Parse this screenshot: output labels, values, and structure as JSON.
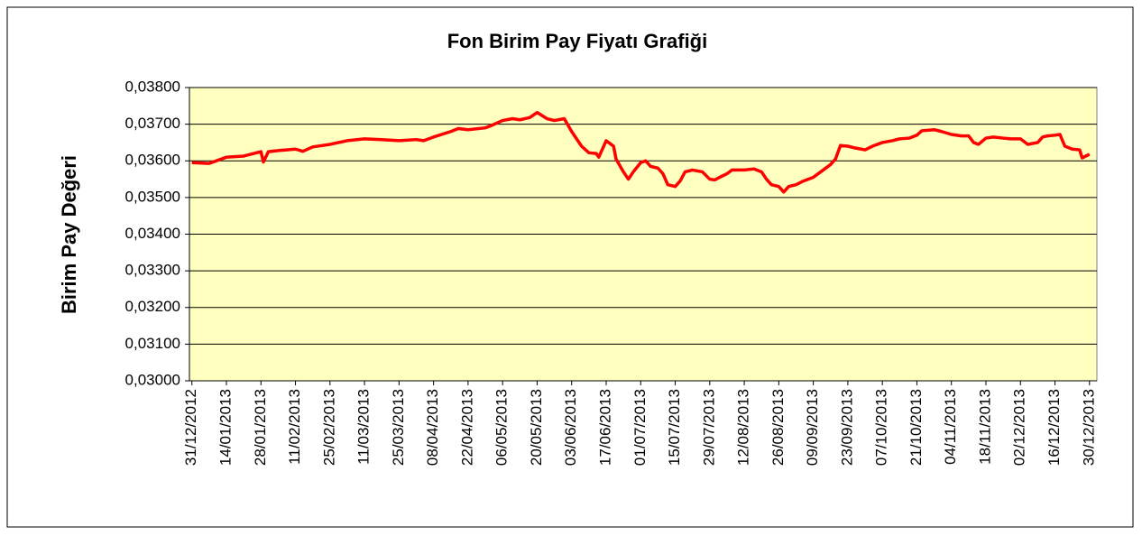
{
  "chart_data": {
    "type": "line",
    "title": "Fon Birim Pay Fiyatı Grafiği",
    "y_label": "Birim Pay Değeri",
    "x": [
      "31/12/2012",
      "07/01/2013",
      "14/01/2013",
      "21/01/2013",
      "28/01/2013",
      "29/01/2013",
      "31/01/2013",
      "04/02/2013",
      "11/02/2013",
      "14/02/2013",
      "18/02/2013",
      "25/02/2013",
      "04/03/2013",
      "11/03/2013",
      "18/03/2013",
      "25/03/2013",
      "01/04/2013",
      "04/04/2013",
      "08/04/2013",
      "15/04/2013",
      "18/04/2013",
      "22/04/2013",
      "29/04/2013",
      "01/05/2013",
      "06/05/2013",
      "10/05/2013",
      "13/05/2013",
      "17/05/2013",
      "20/05/2013",
      "24/05/2013",
      "27/05/2013",
      "31/05/2013",
      "03/06/2013",
      "05/06/2013",
      "07/06/2013",
      "10/06/2013",
      "13/06/2013",
      "14/06/2013",
      "17/06/2013",
      "20/06/2013",
      "21/06/2013",
      "24/06/2013",
      "26/06/2013",
      "28/06/2013",
      "01/07/2013",
      "03/07/2013",
      "05/07/2013",
      "08/07/2013",
      "10/07/2013",
      "12/07/2013",
      "15/07/2013",
      "17/07/2013",
      "19/07/2013",
      "22/07/2013",
      "26/07/2013",
      "29/07/2013",
      "31/07/2013",
      "02/08/2013",
      "05/08/2013",
      "07/08/2013",
      "12/08/2013",
      "16/08/2013",
      "19/08/2013",
      "21/08/2013",
      "23/08/2013",
      "26/08/2013",
      "28/08/2013",
      "30/08/2013",
      "02/09/2013",
      "05/09/2013",
      "09/09/2013",
      "12/09/2013",
      "16/09/2013",
      "18/09/2013",
      "20/09/2013",
      "23/09/2013",
      "26/09/2013",
      "30/09/2013",
      "03/10/2013",
      "07/10/2013",
      "11/10/2013",
      "14/10/2013",
      "18/10/2013",
      "21/10/2013",
      "23/10/2013",
      "28/10/2013",
      "31/10/2013",
      "04/11/2013",
      "08/11/2013",
      "11/11/2013",
      "13/11/2013",
      "15/11/2013",
      "18/11/2013",
      "21/11/2013",
      "25/11/2013",
      "28/11/2013",
      "02/12/2013",
      "05/12/2013",
      "09/12/2013",
      "11/12/2013",
      "13/12/2013",
      "16/12/2013",
      "18/12/2013",
      "20/12/2013",
      "23/12/2013",
      "26/12/2013",
      "27/12/2013",
      "30/12/2013"
    ],
    "values": [
      0.03595,
      0.03593,
      0.0361,
      0.03613,
      0.03625,
      0.03597,
      0.03625,
      0.03628,
      0.03632,
      0.03626,
      0.03638,
      0.03645,
      0.03655,
      0.0366,
      0.03658,
      0.03655,
      0.03658,
      0.03655,
      0.03665,
      0.0368,
      0.03688,
      0.03685,
      0.0369,
      0.03695,
      0.0371,
      0.03715,
      0.03712,
      0.03718,
      0.03732,
      0.03715,
      0.0371,
      0.03715,
      0.0368,
      0.0366,
      0.0364,
      0.03622,
      0.0362,
      0.0361,
      0.03655,
      0.0364,
      0.03605,
      0.0357,
      0.0355,
      0.0357,
      0.03595,
      0.036,
      0.03585,
      0.0358,
      0.03565,
      0.03535,
      0.0353,
      0.03545,
      0.0357,
      0.03575,
      0.0357,
      0.0355,
      0.03548,
      0.03555,
      0.03565,
      0.03575,
      0.03575,
      0.03578,
      0.0357,
      0.0355,
      0.03535,
      0.0353,
      0.03515,
      0.0353,
      0.03535,
      0.03545,
      0.03555,
      0.0357,
      0.0359,
      0.03605,
      0.03642,
      0.0364,
      0.03635,
      0.0363,
      0.0364,
      0.0365,
      0.03655,
      0.0366,
      0.03662,
      0.0367,
      0.03682,
      0.03685,
      0.0368,
      0.03672,
      0.03668,
      0.03668,
      0.0365,
      0.03645,
      0.03662,
      0.03665,
      0.03662,
      0.0366,
      0.0366,
      0.03645,
      0.0365,
      0.03665,
      0.03668,
      0.0367,
      0.03672,
      0.0364,
      0.03632,
      0.0363,
      0.03608,
      0.03618
    ],
    "color": "#ff0000",
    "xlim": [
      "30/12/2012",
      "02/01/2014"
    ],
    "xticks": [
      "31/12/2012",
      "14/01/2013",
      "28/01/2013",
      "11/02/2013",
      "25/02/2013",
      "11/03/2013",
      "25/03/2013",
      "08/04/2013",
      "22/04/2013",
      "06/05/2013",
      "20/05/2013",
      "03/06/2013",
      "17/06/2013",
      "01/07/2013",
      "15/07/2013",
      "29/07/2013",
      "12/08/2013",
      "26/08/2013",
      "09/09/2013",
      "23/09/2013",
      "07/10/2013",
      "21/10/2013",
      "04/11/2013",
      "18/11/2013",
      "02/12/2013",
      "16/12/2013",
      "30/12/2013"
    ],
    "ylim": [
      0.03,
      0.038
    ],
    "yticks": [
      {
        "value": 0.03,
        "label": "0,03000"
      },
      {
        "value": 0.031,
        "label": "0,03100"
      },
      {
        "value": 0.032,
        "label": "0,03200"
      },
      {
        "value": 0.033,
        "label": "0,03300"
      },
      {
        "value": 0.034,
        "label": "0,03400"
      },
      {
        "value": 0.035,
        "label": "0,03500"
      },
      {
        "value": 0.036,
        "label": "0,03600"
      },
      {
        "value": 0.037,
        "label": "0,03700"
      },
      {
        "value": 0.038,
        "label": "0,03800"
      }
    ],
    "grid": true
  }
}
